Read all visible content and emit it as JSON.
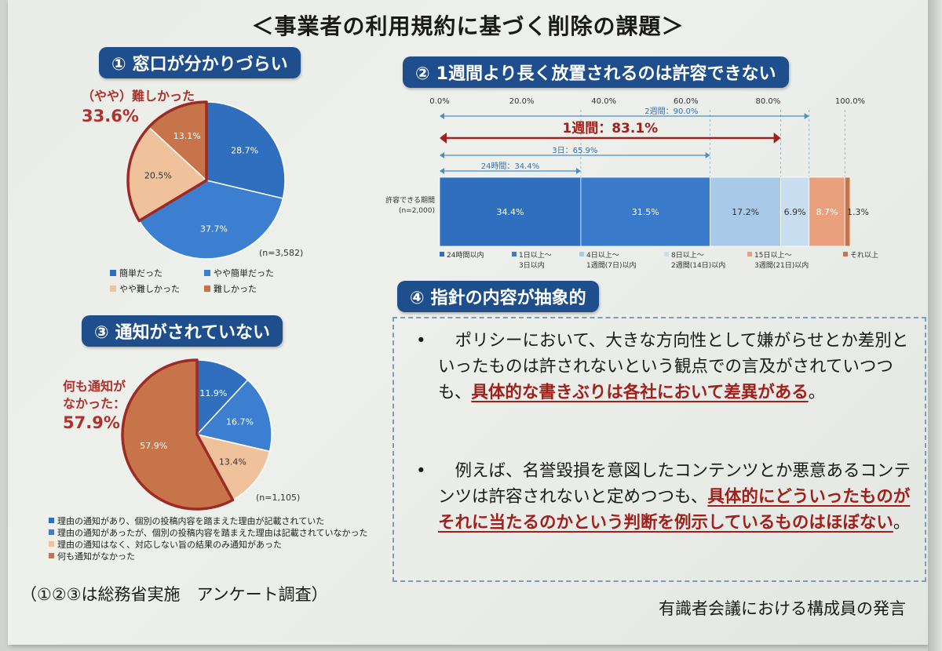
{
  "title": "＜事業者の利用規約に基づく削除の課題＞",
  "colors": {
    "dark_blue": "#2f6fbd",
    "mid_blue": "#3c7ed0",
    "light_blue": "#a8c9e8",
    "peach": "#f0c29c",
    "orange": "#c8744a",
    "red_text": "#b0302c",
    "pill_bg": "#1f4e8c"
  },
  "section1": {
    "num": "①",
    "label": "窓口が分かりづらい",
    "callout_line1": "（やや）難しかった",
    "callout_line2": "33.6%",
    "n": "(n=3,582)",
    "chart_data": {
      "type": "pie",
      "title": "窓口が分かりづらい",
      "labels": [
        "簡単だった",
        "やや簡単だった",
        "やや難しかった",
        "難しかった"
      ],
      "values": [
        28.7,
        37.7,
        20.5,
        13.1
      ],
      "value_labels": [
        "28.7%",
        "37.7%",
        "20.5%",
        "13.1%"
      ],
      "colors": [
        "#2f6fbd",
        "#3c7ed0",
        "#f0c29c",
        "#c8744a"
      ]
    },
    "legend": [
      "簡単だった",
      "やや簡単だった",
      "やや難しかった",
      "難しかった"
    ]
  },
  "section2": {
    "num": "②",
    "label": "1週間より長く放置されるのは許容できない",
    "row_label_line1": "許容できる期間",
    "row_label_line2": "(n=2,000)",
    "ticks": [
      "0.0%",
      "20.0%",
      "40.0%",
      "60.0%",
      "80.0%",
      "100.0%"
    ],
    "arrows": [
      {
        "label": "2週間：90.0%",
        "value": 90.0
      },
      {
        "label": "1週間：83.1%",
        "value": 83.1
      },
      {
        "label": "3日：65.9%",
        "value": 65.9
      },
      {
        "label": "24時間：34.4%",
        "value": 34.4
      }
    ],
    "chart_data": {
      "type": "bar",
      "orientation": "horizontal-stacked",
      "title": "1週間より長く放置されるのは許容できない",
      "categories": [
        "許容できる期間"
      ],
      "xlim": [
        0,
        100
      ],
      "series": [
        {
          "name": "24時間以内",
          "values": [
            34.4
          ],
          "label": "34.4%",
          "color": "#2f6fbd"
        },
        {
          "name": "1日以上～3日以内",
          "values": [
            31.5
          ],
          "label": "31.5%",
          "color": "#3a7acb"
        },
        {
          "name": "4日以上～1週間(7日)以内",
          "values": [
            17.2
          ],
          "label": "17.2%",
          "color": "#a8c9e8"
        },
        {
          "name": "8日以上～2週間(14日)以内",
          "values": [
            6.9
          ],
          "label": "6.9%",
          "color": "#c9def1"
        },
        {
          "name": "15日以上～3週間(21日)以内",
          "values": [
            8.7
          ],
          "label": "8.7%",
          "color": "#e8a17c"
        },
        {
          "name": "それ以上",
          "values": [
            1.3
          ],
          "label": "1.3%",
          "color": "#c8744a"
        }
      ]
    },
    "legend": [
      {
        "line1": "24時間以内",
        "line2": ""
      },
      {
        "line1": "1日以上～",
        "line2": "3日以内"
      },
      {
        "line1": "4日以上～",
        "line2": "1週間(7日)以内"
      },
      {
        "line1": "8日以上～",
        "line2": "2週間(14日)以内"
      },
      {
        "line1": "15日以上～",
        "line2": "3週間(21日)以内"
      },
      {
        "line1": "それ以上",
        "line2": ""
      }
    ]
  },
  "section3": {
    "num": "③",
    "label": "通知がされていない",
    "callout_line1": "何も通知が",
    "callout_line2": "なかった：",
    "callout_line3": "57.9%",
    "n": "(n=1,105)",
    "chart_data": {
      "type": "pie",
      "title": "通知がされていない",
      "labels": [
        "理由の通知があり、個別の投稿内容を踏まえた理由が記載されていた",
        "理由の通知があったが、個別の投稿内容を踏まえた理由は記載されていなかった",
        "理由の通知はなく、対応しない旨の結果のみ通知があった",
        "何も通知がなかった"
      ],
      "values": [
        11.9,
        16.7,
        13.4,
        57.9
      ],
      "value_labels": [
        "11.9%",
        "16.7%",
        "13.4%",
        "57.9%"
      ],
      "colors": [
        "#2f6fbd",
        "#3c7ed0",
        "#f0c29c",
        "#c8744a"
      ]
    },
    "legend": [
      "理由の通知があり、個別の投稿内容を踏まえた理由が記載されていた",
      "理由の通知があったが、個別の投稿内容を踏まえた理由は記載されていなかった",
      "理由の通知はなく、対応しない旨の結果のみ通知があった",
      "何も通知がなかった"
    ]
  },
  "section4": {
    "num": "④",
    "label": "指針の内容が抽象的",
    "bullet_symbol": "•",
    "bullet1_plain": "　ポリシーにおいて、大きな方向性として嫌がらせとか差別といったものは許されないという観点での言及がされていつつも、",
    "bullet1_em": "具体的な書きぶりは各社において差異がある",
    "bullet1_end": "。",
    "bullet2_plain": "　例えば、名誉毀損を意図したコンテンツとか悪意あるコンテンツは許容されないと定めつつも、",
    "bullet2_em": "具体的にどういったものがそれに当たるのかという判断を例示しているものはほぼない",
    "bullet2_end": "。"
  },
  "footer_left": "（①②③は総務省実施　アンケート調査）",
  "footer_right": "有識者会議における構成員の発言"
}
